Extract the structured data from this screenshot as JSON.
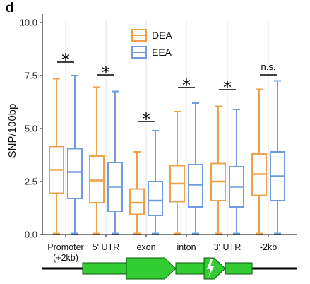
{
  "panel_label": "d",
  "chart_data": {
    "type": "box",
    "ylabel": "SNP/100bp",
    "ylim": [
      0,
      10
    ],
    "yticks": [
      "0.0",
      "2.5",
      "5.0",
      "7.5",
      "10.0"
    ],
    "grid": "vertical lines at categories",
    "legend": {
      "placement": "top-center"
    },
    "categories": [
      "Promoter\n(+2kb)",
      "5' UTR",
      "exon",
      "inton",
      "3' UTR",
      "-2kb"
    ],
    "series": [
      {
        "name": "DEA",
        "color": "#F0A04B",
        "boxes": [
          {
            "min": 0.05,
            "q1": 1.95,
            "median": 3.05,
            "q3": 4.15,
            "max": 7.35
          },
          {
            "min": 0.05,
            "q1": 1.5,
            "median": 2.55,
            "q3": 3.7,
            "max": 6.95
          },
          {
            "min": 0.05,
            "q1": 0.95,
            "median": 1.5,
            "q3": 2.15,
            "max": 3.9
          },
          {
            "min": 0.05,
            "q1": 1.55,
            "median": 2.4,
            "q3": 3.25,
            "max": 5.8
          },
          {
            "min": 0.05,
            "q1": 1.6,
            "median": 2.5,
            "q3": 3.35,
            "max": 6.05
          },
          {
            "min": 0.05,
            "q1": 1.85,
            "median": 2.85,
            "q3": 3.8,
            "max": 6.85
          }
        ]
      },
      {
        "name": "EEA",
        "color": "#6F9CE0",
        "boxes": [
          {
            "min": 0.05,
            "q1": 1.7,
            "median": 2.95,
            "q3": 4.05,
            "max": 7.5
          },
          {
            "min": 0.05,
            "q1": 1.1,
            "median": 2.25,
            "q3": 3.4,
            "max": 6.75
          },
          {
            "min": 0.05,
            "q1": 0.9,
            "median": 1.6,
            "q3": 2.5,
            "max": 4.9
          },
          {
            "min": 0.05,
            "q1": 1.3,
            "median": 2.35,
            "q3": 3.3,
            "max": 6.2
          },
          {
            "min": 0.05,
            "q1": 1.3,
            "median": 2.25,
            "q3": 3.2,
            "max": 5.9
          },
          {
            "min": 0.05,
            "q1": 1.6,
            "median": 2.75,
            "q3": 3.9,
            "max": 7.25
          }
        ]
      }
    ],
    "significance": [
      "*",
      "*",
      "*",
      "*",
      "*",
      "n.s."
    ],
    "significance_y": [
      8.3,
      7.7,
      5.5,
      7.1,
      7.0,
      7.7
    ]
  },
  "gene_model": {
    "colors": {
      "feature": "#33CC33",
      "outline": "#0A5A0A",
      "line": "#000000"
    }
  }
}
